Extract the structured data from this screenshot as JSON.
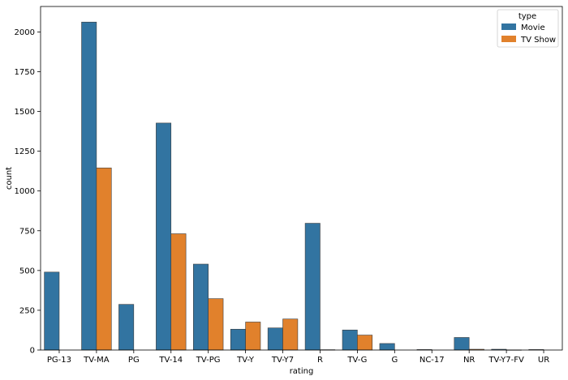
{
  "chart_data": {
    "type": "bar",
    "xlabel": "rating",
    "ylabel": "count",
    "ylim": [
      0,
      2160
    ],
    "yticks": [
      0,
      250,
      500,
      750,
      1000,
      1250,
      1500,
      1750,
      2000
    ],
    "categories": [
      "PG-13",
      "TV-MA",
      "PG",
      "TV-14",
      "TV-PG",
      "TV-Y",
      "TV-Y7",
      "R",
      "TV-G",
      "G",
      "NC-17",
      "NR",
      "TV-Y7-FV",
      "UR"
    ],
    "legend": {
      "title": "type",
      "placement": "top-right"
    },
    "grid": false,
    "series": [
      {
        "name": "Movie",
        "color": "#3274a1",
        "values": [
          490,
          2062,
          287,
          1427,
          540,
          131,
          139,
          797,
          126,
          41,
          3,
          79,
          5,
          3
        ]
      },
      {
        "name": "TV Show",
        "color": "#e1812c",
        "values": [
          0,
          1145,
          0,
          731,
          323,
          176,
          195,
          2,
          94,
          0,
          0,
          5,
          1,
          0
        ]
      }
    ]
  }
}
